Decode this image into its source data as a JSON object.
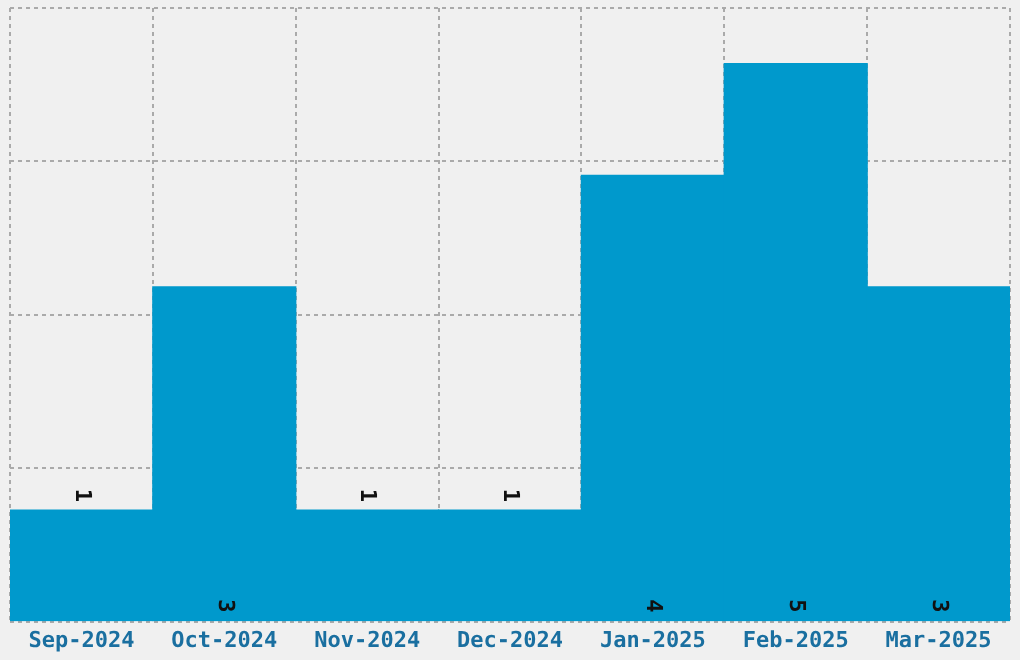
{
  "chart_data": {
    "type": "bar",
    "categories": [
      "Sep-2024",
      "Oct-2024",
      "Nov-2024",
      "Dec-2024",
      "Jan-2025",
      "Feb-2025",
      "Mar-2025"
    ],
    "values": [
      1,
      3,
      1,
      1,
      4,
      5,
      3
    ],
    "color": "#0099cc",
    "ylim": [
      0,
      5.5
    ],
    "yticks": [
      {
        "value": 0,
        "label": null
      },
      {
        "value": 1.375,
        "label": null
      },
      {
        "value": 2.75,
        "label": null
      },
      {
        "value": 4.125,
        "label": null
      },
      {
        "value": 5.5,
        "label": null
      }
    ],
    "grid": true,
    "tick_labels": "x",
    "data_labels": true
  }
}
